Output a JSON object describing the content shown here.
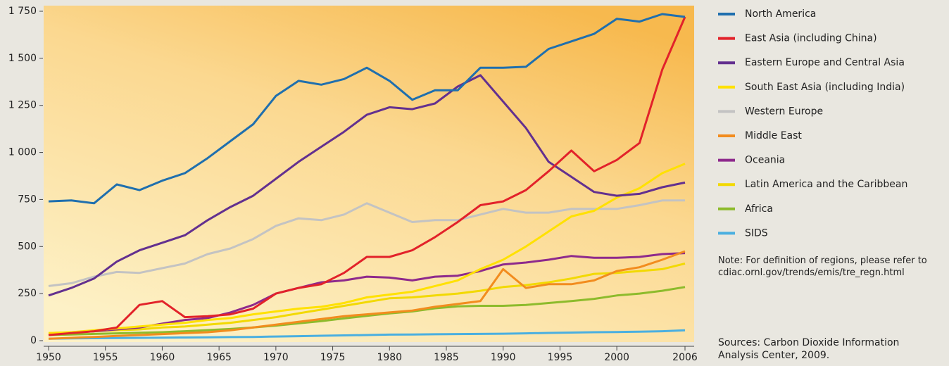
{
  "chart_data": {
    "type": "line",
    "x": [
      1950,
      1952,
      1954,
      1956,
      1958,
      1960,
      1962,
      1964,
      1966,
      1968,
      1970,
      1972,
      1974,
      1976,
      1978,
      1980,
      1982,
      1984,
      1986,
      1988,
      1990,
      1992,
      1994,
      1996,
      1998,
      2000,
      2002,
      2004,
      2006
    ],
    "xlim": [
      1950,
      2006
    ],
    "xticks": [
      1950,
      1955,
      1960,
      1965,
      1970,
      1975,
      1980,
      1985,
      1990,
      1995,
      2000,
      2006
    ],
    "ylim": [
      0,
      1750
    ],
    "yticks": [
      0,
      250,
      500,
      750,
      {
        "value": 1000,
        "label": "1 000"
      },
      {
        "value": 1250,
        "label": "1 250"
      },
      {
        "value": 1500,
        "label": "1 500"
      },
      {
        "value": 1750,
        "label": "1 750"
      }
    ],
    "series": [
      {
        "name": "North America",
        "color": "#1f6fae",
        "values": [
          740,
          745,
          730,
          830,
          800,
          850,
          890,
          970,
          1060,
          1150,
          1300,
          1380,
          1360,
          1390,
          1450,
          1380,
          1280,
          1330,
          1330,
          1450,
          1450,
          1455,
          1550,
          1590,
          1630,
          1710,
          1695,
          1735,
          1720
        ]
      },
      {
        "name": "East Asia (including China)",
        "color": "#e2222a",
        "values": [
          30,
          40,
          50,
          70,
          190,
          210,
          125,
          130,
          140,
          170,
          250,
          280,
          300,
          360,
          445,
          445,
          480,
          550,
          630,
          720,
          740,
          800,
          900,
          1010,
          900,
          960,
          1050,
          1440,
          1720
        ]
      },
      {
        "name": "Eastern Europe and Central Asia",
        "color": "#63308f",
        "values": [
          240,
          280,
          330,
          420,
          480,
          520,
          560,
          640,
          710,
          770,
          860,
          950,
          1030,
          1110,
          1200,
          1240,
          1230,
          1260,
          1350,
          1410,
          1270,
          1130,
          950,
          870,
          790,
          770,
          780,
          815,
          840
        ]
      },
      {
        "name": "South East Asia (including India)",
        "color": "#ffe100",
        "values": [
          40,
          45,
          55,
          65,
          75,
          85,
          95,
          110,
          120,
          140,
          155,
          170,
          180,
          200,
          230,
          245,
          260,
          290,
          320,
          380,
          430,
          500,
          580,
          660,
          690,
          760,
          810,
          890,
          940
        ]
      },
      {
        "name": "Western Europe",
        "color": "#c3c3c3",
        "values": [
          290,
          305,
          340,
          365,
          360,
          385,
          410,
          460,
          490,
          540,
          610,
          650,
          640,
          670,
          730,
          680,
          630,
          640,
          640,
          670,
          700,
          680,
          680,
          700,
          700,
          700,
          720,
          745,
          745
        ]
      },
      {
        "name": "Middle East",
        "color": "#f28c1e",
        "values": [
          10,
          15,
          20,
          25,
          30,
          35,
          40,
          45,
          55,
          70,
          85,
          100,
          115,
          130,
          140,
          150,
          160,
          180,
          195,
          210,
          380,
          280,
          300,
          300,
          320,
          370,
          390,
          430,
          475
        ]
      },
      {
        "name": "Oceania",
        "color": "#8e2a8c",
        "values": [
          30,
          45,
          50,
          60,
          70,
          90,
          110,
          120,
          150,
          190,
          250,
          280,
          310,
          320,
          340,
          335,
          320,
          340,
          345,
          370,
          405,
          415,
          430,
          450,
          440,
          440,
          445,
          460,
          465
        ]
      },
      {
        "name": "Latin America and the Caribbean",
        "color": "#f2d900",
        "values": [
          40,
          45,
          50,
          55,
          60,
          70,
          75,
          85,
          95,
          110,
          125,
          145,
          165,
          185,
          205,
          225,
          230,
          240,
          250,
          265,
          285,
          295,
          310,
          330,
          355,
          360,
          370,
          380,
          410
        ]
      },
      {
        "name": "Africa",
        "color": "#8dbb2c",
        "values": [
          30,
          33,
          36,
          39,
          42,
          45,
          50,
          56,
          62,
          70,
          80,
          92,
          104,
          118,
          132,
          145,
          155,
          172,
          182,
          185,
          185,
          190,
          200,
          210,
          222,
          240,
          250,
          265,
          285
        ]
      },
      {
        "name": "SIDS",
        "color": "#4aafe0",
        "values": [
          10,
          12,
          13,
          14,
          15,
          16,
          17,
          18,
          19,
          20,
          22,
          24,
          26,
          28,
          30,
          32,
          33,
          34,
          35,
          36,
          37,
          39,
          41,
          43,
          45,
          46,
          48,
          50,
          55
        ]
      }
    ],
    "note": "Note: For definition of regions, please refer to cdiac.ornl.gov/trends/emis/tre_regn.html",
    "source": "Sources: Carbon Dioxide Information Analysis Center, 2009."
  }
}
